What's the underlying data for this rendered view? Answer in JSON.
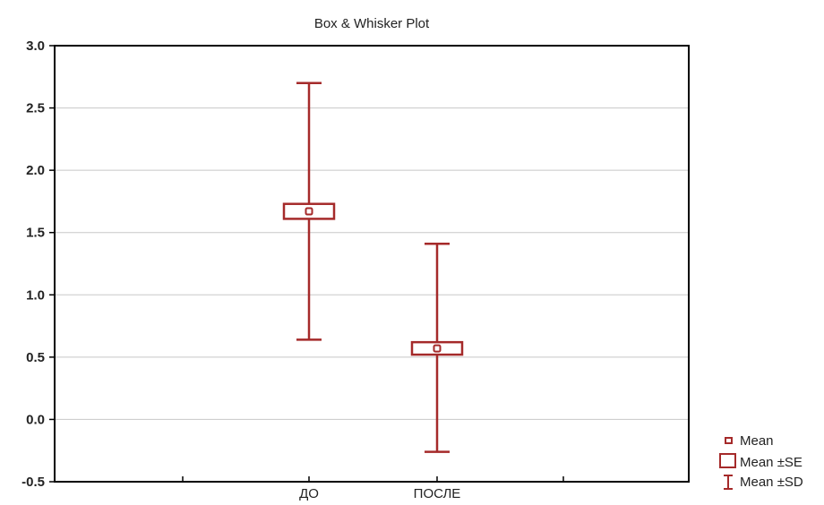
{
  "chart_data": {
    "type": "box",
    "title": "Box & Whisker Plot",
    "xlabel": "",
    "ylabel": "",
    "categories": [
      "ДО",
      "ПОСЛЕ"
    ],
    "ylim": [
      -0.5,
      3.0
    ],
    "yticks": [
      "3.0",
      "2.5",
      "2.0",
      "1.5",
      "1.0",
      "0.5",
      "0.0",
      "-0.5"
    ],
    "ytick_values": [
      3.0,
      2.5,
      2.0,
      1.5,
      1.0,
      0.5,
      0.0,
      -0.5
    ],
    "grid": true,
    "legend_position": "bottom-right",
    "color": "#a52a2a",
    "series": [
      {
        "category": "ДО",
        "mean": 1.67,
        "se_low": 1.61,
        "se_high": 1.73,
        "sd_low": 0.64,
        "sd_high": 2.7
      },
      {
        "category": "ПОСЛЕ",
        "mean": 0.57,
        "se_low": 0.52,
        "se_high": 0.62,
        "sd_low": -0.26,
        "sd_high": 1.41
      }
    ],
    "legend": [
      {
        "symbol": "mean",
        "label": "Mean"
      },
      {
        "symbol": "box",
        "label": "Mean ±SE"
      },
      {
        "symbol": "whisker",
        "label": "Mean ±SD"
      }
    ]
  }
}
